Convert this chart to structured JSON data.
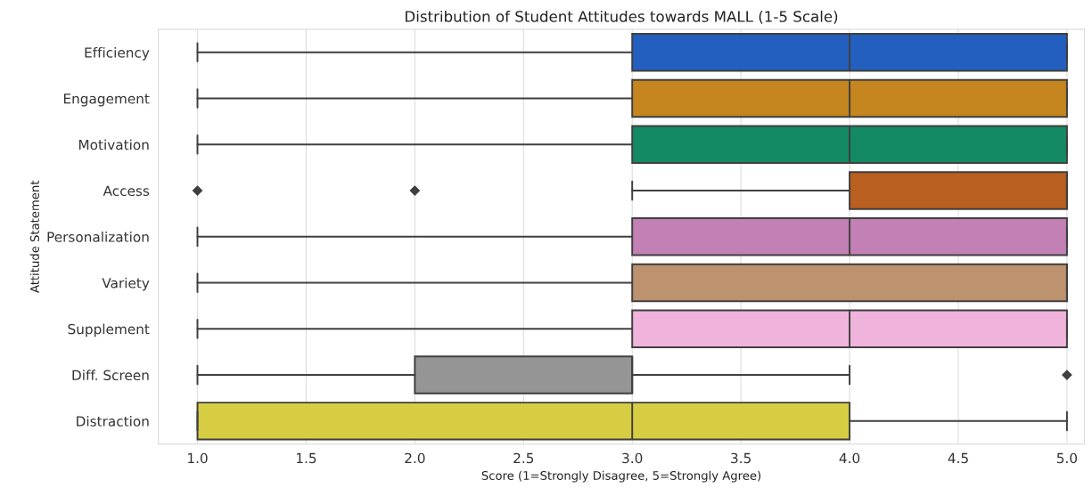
{
  "chart_data": {
    "type": "box",
    "title": "Distribution of Student Attitudes towards MALL (1-5 Scale)",
    "xlabel": "Score (1=Strongly Disagree, 5=Strongly Agree)",
    "ylabel": "Attitude Statement",
    "orientation": "horizontal",
    "categories": [
      "Efficiency",
      "Engagement",
      "Motivation",
      "Access",
      "Personalization",
      "Variety",
      "Supplement",
      "Diff. Screen",
      "Distraction"
    ],
    "colors": [
      "#235fbf",
      "#c5861f",
      "#138a64",
      "#b95f1f",
      "#c280b4",
      "#bd926f",
      "#f0b4dc",
      "#959595",
      "#d6cd43"
    ],
    "boxes": [
      {
        "low": 1,
        "q1": 3,
        "median": 4,
        "q3": 5,
        "high": 5
      },
      {
        "low": 1,
        "q1": 3,
        "median": 4,
        "q3": 5,
        "high": 5
      },
      {
        "low": 1,
        "q1": 3,
        "median": 4,
        "q3": 5,
        "high": 5
      },
      {
        "low": 3,
        "q1": 4,
        "median": 5,
        "q3": 5,
        "high": 5,
        "outliers": [
          1,
          2
        ]
      },
      {
        "low": 1,
        "q1": 3,
        "median": 4,
        "q3": 5,
        "high": 5
      },
      {
        "low": 1,
        "q1": 3,
        "median": 5,
        "q3": 5,
        "high": 5
      },
      {
        "low": 1,
        "q1": 3,
        "median": 4,
        "q3": 5,
        "high": 5
      },
      {
        "low": 1,
        "q1": 2,
        "median": 3,
        "q3": 3,
        "high": 4,
        "outliers": [
          5
        ]
      },
      {
        "low": 1,
        "q1": 1,
        "median": 3,
        "q3": 4,
        "high": 5
      }
    ],
    "xlim": [
      0.82,
      5.08
    ],
    "xticks": [
      {
        "value": 1,
        "label": "1.0"
      },
      {
        "value": 1.5,
        "label": "1.5"
      },
      {
        "value": 2,
        "label": "2.0"
      },
      {
        "value": 2.5,
        "label": "2.5"
      },
      {
        "value": 3,
        "label": "3.0"
      },
      {
        "value": 3.5,
        "label": "3.5"
      },
      {
        "value": 4,
        "label": "4.0"
      },
      {
        "value": 4.5,
        "label": "4.5"
      },
      {
        "value": 5,
        "label": "5.0"
      }
    ],
    "grid": "x"
  }
}
